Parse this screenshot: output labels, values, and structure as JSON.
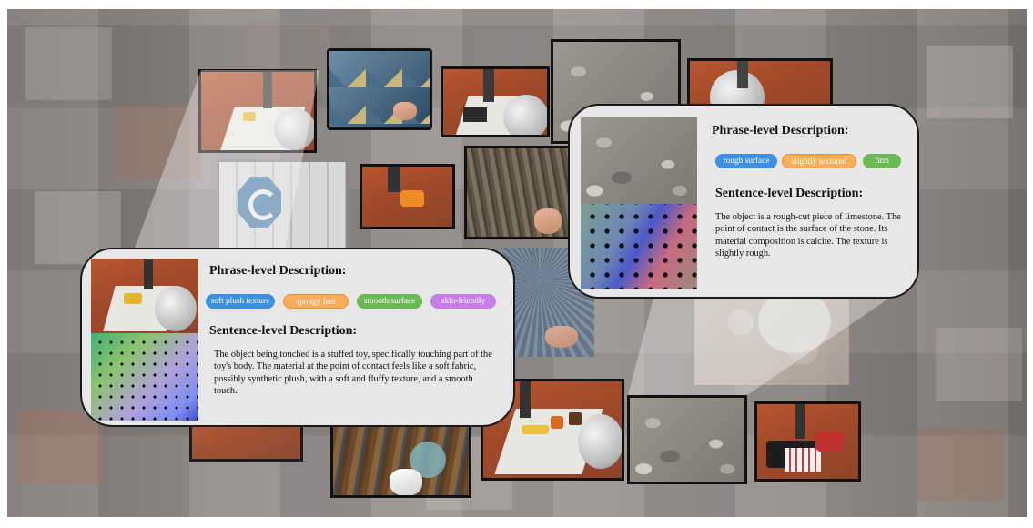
{
  "callout_left": {
    "phrase_heading": "Phrase-level Description:",
    "tags": [
      {
        "label": "soft plush texture",
        "color": "#3d8fe4"
      },
      {
        "label": "spongy feel",
        "color": "#f6ae58"
      },
      {
        "label": "smooth surface",
        "color": "#6ab856"
      },
      {
        "label": "skin-friendly",
        "color": "#c67de9"
      }
    ],
    "sentence_heading": "Sentence-level Description:",
    "sentence": "The object being touched is a stuffed toy, specifically touching part of the toy's body. The material at the point of contact feels like a soft fabric, possibly synthetic plush, with a soft and fluffy texture, and a smooth touch."
  },
  "callout_right": {
    "phrase_heading": "Phrase-level Description:",
    "tags": [
      {
        "label": "rough surface",
        "color": "#3d8fe4"
      },
      {
        "label": "slightly textured",
        "color": "#f6ae58"
      },
      {
        "label": "firm",
        "color": "#6ab856"
      }
    ],
    "sentence_heading": "Sentence-level Description:",
    "sentence": "The object is a rough-cut piece of limestone. The point of contact is the surface of the stone. Its material composition is calcite. The texture is slightly rough."
  },
  "colors": {
    "panel_background": "#e7e7e7",
    "wedge_highlight": "#ffffff",
    "table_surface": "#a84d2c"
  },
  "thumbnails": [
    {
      "name": "robot-toy-thumbnail"
    },
    {
      "name": "quilt-thumbnail"
    },
    {
      "name": "robot-gripper-thumbnail"
    },
    {
      "name": "pebbles-thumbnail"
    },
    {
      "name": "robot-table-thumbnail"
    },
    {
      "name": "white-wood-thumbnail"
    },
    {
      "name": "robot-orange-thumbnail"
    },
    {
      "name": "tree-bark-thumbnail"
    },
    {
      "name": "fan-thumbnail"
    },
    {
      "name": "concrete-thumbnail"
    },
    {
      "name": "robot-small-objects-thumbnail"
    },
    {
      "name": "wood-panel-thumbnail"
    },
    {
      "name": "stones-thumbnail"
    },
    {
      "name": "robot-cloth-thumbnail"
    }
  ]
}
